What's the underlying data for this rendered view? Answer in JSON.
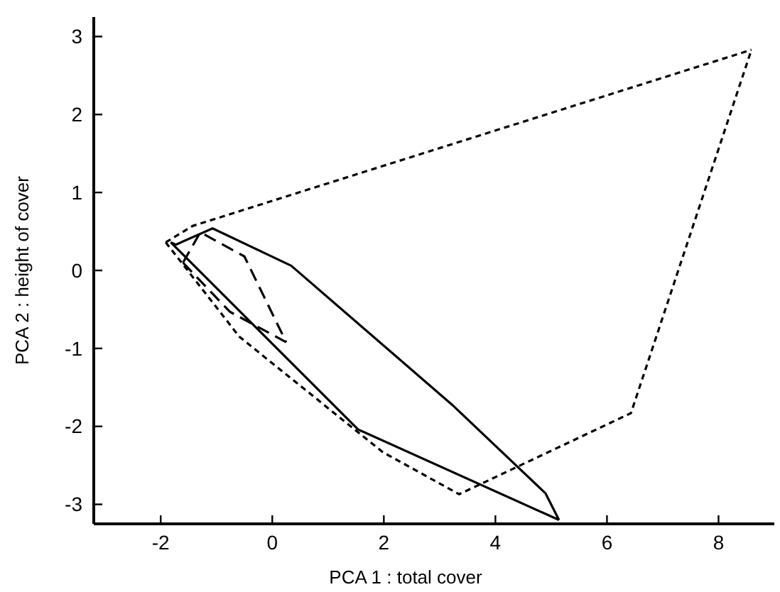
{
  "chart_data": {
    "type": "line",
    "xlabel": "PCA 1 : total cover",
    "ylabel": "PCA 2 : height of cover",
    "xlim": [
      -3.2,
      9
    ],
    "ylim": [
      -3.25,
      3.25
    ],
    "xticks": [
      -2,
      0,
      2,
      4,
      6,
      8
    ],
    "yticks": [
      -3,
      -2,
      -1,
      0,
      1,
      2,
      3
    ],
    "grid": false,
    "marker": "none",
    "series": [
      {
        "color": "#000000",
        "line_style": "dotted",
        "x": [
          -1.91,
          -1.43,
          8.59
        ],
        "values": [
          0.36,
          0.57,
          2.83
        ]
      },
      {
        "color": "#000000",
        "line_style": "dotted",
        "x": [
          -1.91,
          -0.59,
          1.98,
          3.35,
          6.43,
          8.59
        ],
        "values": [
          0.36,
          -0.85,
          -2.33,
          -2.87,
          -1.83,
          2.83
        ]
      },
      {
        "color": "#000000",
        "line_style": "solid",
        "x": [
          -1.82,
          -1.73,
          -1.07,
          0.34,
          3.22,
          4.9,
          5.14
        ],
        "values": [
          0.36,
          0.33,
          0.54,
          0.06,
          -1.72,
          -2.86,
          -3.2
        ]
      },
      {
        "color": "#000000",
        "line_style": "solid",
        "x": [
          -1.82,
          1.54,
          5.14
        ],
        "values": [
          0.36,
          -2.04,
          -3.2
        ]
      },
      {
        "color": "#000000",
        "line_style": "dashed",
        "x": [
          -1.6,
          -1.29,
          -0.5,
          0.25
        ],
        "values": [
          0.1,
          0.49,
          0.18,
          -0.92
        ]
      },
      {
        "color": "#000000",
        "line_style": "dashed",
        "x": [
          -1.6,
          -0.76,
          0.25
        ],
        "values": [
          0.1,
          -0.53,
          -0.92
        ]
      }
    ]
  }
}
